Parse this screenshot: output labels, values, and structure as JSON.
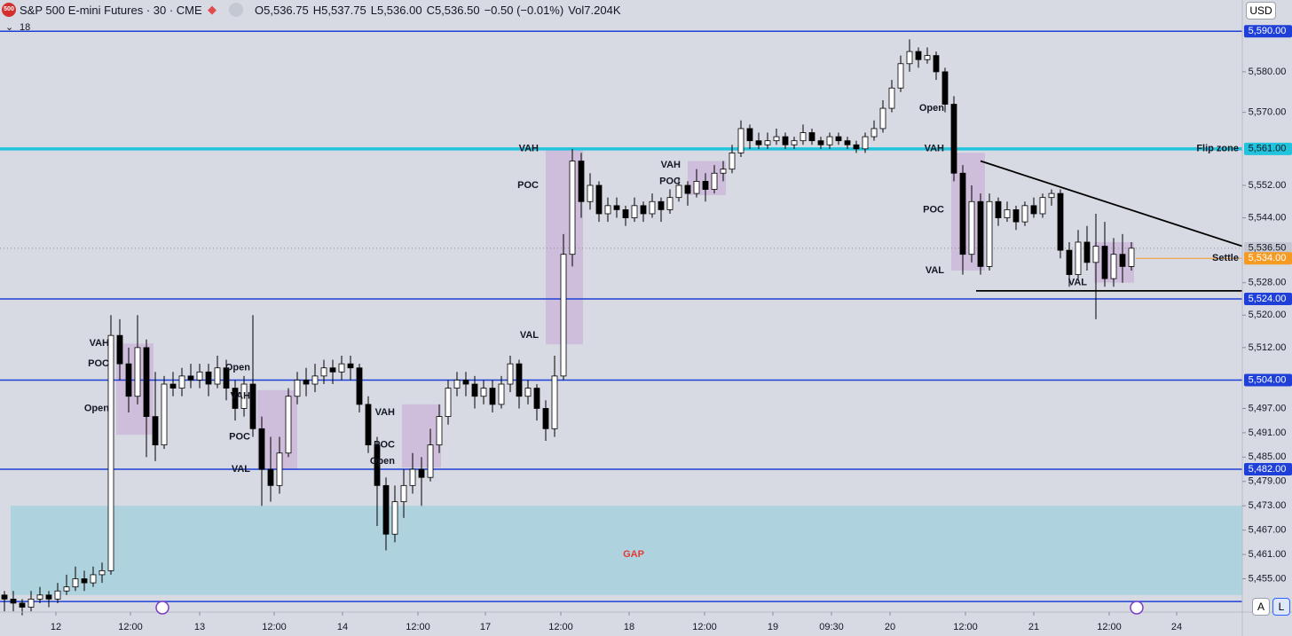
{
  "toolbar": {
    "logo": "500",
    "symbol": "S&P 500 E-mini Futures · 30 · CME",
    "ohlc": [
      {
        "key": "O",
        "text": "5,536.75"
      },
      {
        "key": "H",
        "text": "5,537.75"
      },
      {
        "key": "L",
        "text": "5,536.00"
      },
      {
        "key": "C",
        "text": "5,536.50"
      },
      {
        "key": "",
        "text": "−0.50 (−0.01%)"
      },
      {
        "key": "Vol",
        "text": "7.204K"
      }
    ],
    "indicator_count": "18",
    "currency": "USD",
    "auto_button": "A",
    "log_button": "L"
  },
  "chart_data": {
    "type": "candlestick",
    "xlim": [
      0,
      140
    ],
    "ylim": [
      5446.8,
      5597.7
    ],
    "xticks": [
      {
        "value": 6.3,
        "label": "12"
      },
      {
        "value": 14.7,
        "label": "12:00"
      },
      {
        "value": 22.5,
        "label": "13"
      },
      {
        "value": 30.9,
        "label": "12:00"
      },
      {
        "value": 38.6,
        "label": "14"
      },
      {
        "value": 47.1,
        "label": "12:00"
      },
      {
        "value": 54.7,
        "label": "17"
      },
      {
        "value": 63.2,
        "label": "12:00"
      },
      {
        "value": 70.9,
        "label": "18"
      },
      {
        "value": 79.4,
        "label": "12:00"
      },
      {
        "value": 87.1,
        "label": "19"
      },
      {
        "value": 93.7,
        "label": "09:30"
      },
      {
        "value": 100.3,
        "label": "20"
      },
      {
        "value": 108.8,
        "label": "12:00"
      },
      {
        "value": 116.5,
        "label": "21"
      },
      {
        "value": 125,
        "label": "12:00"
      },
      {
        "value": 132.6,
        "label": "24"
      }
    ],
    "yticks": [
      {
        "value": 5580,
        "label": "5,580.00"
      },
      {
        "value": 5570,
        "label": "5,570.00"
      },
      {
        "value": 5552,
        "label": "5,552.00"
      },
      {
        "value": 5544,
        "label": "5,544.00"
      },
      {
        "value": 5528,
        "label": "5,528.00"
      },
      {
        "value": 5520,
        "label": "5,520.00"
      },
      {
        "value": 5512,
        "label": "5,512.00"
      },
      {
        "value": 5497,
        "label": "5,497.00"
      },
      {
        "value": 5491,
        "label": "5,491.00"
      },
      {
        "value": 5485,
        "label": "5,485.00"
      },
      {
        "value": 5479,
        "label": "5,479.00"
      },
      {
        "value": 5473,
        "label": "5,473.00"
      },
      {
        "value": 5467,
        "label": "5,467.00"
      },
      {
        "value": 5461,
        "label": "5,461.00"
      },
      {
        "value": 5455,
        "label": "5,455.00"
      }
    ],
    "levels": [
      {
        "value": 5590,
        "label": "5,590.00",
        "color": "#1e40d8",
        "width": 1.5
      },
      {
        "value": 5561,
        "label": "5,561.00",
        "color": "#22c3dd",
        "width": 3.5,
        "name": "Flip zone"
      },
      {
        "value": 5536.5,
        "label": "5,536.50",
        "color": "#c5c8d0",
        "width": 1,
        "style": "dotted"
      },
      {
        "value": 5534,
        "label": "5,534.00",
        "color": "#f59a23",
        "width": 1,
        "name": "Settle",
        "from": 128
      },
      {
        "value": 5524,
        "label": "5,524.00",
        "color": "#1e40d8",
        "width": 1.5
      },
      {
        "value": 5504,
        "label": "5,504.00",
        "color": "#1e40d8",
        "width": 1.5
      },
      {
        "value": 5482,
        "label": "5,482.00",
        "color": "#1e40d8",
        "width": 1.5
      },
      {
        "value": 5449.4,
        "color": "#1e40d8",
        "width": 1.5
      }
    ],
    "zones": [
      {
        "x0": 1.2,
        "x1": 140,
        "y0": 5451,
        "y1": 5473,
        "color": "#a8d1dd",
        "opacity": 0.85
      },
      {
        "x0": 13.1,
        "x1": 17.3,
        "y0": 5490.5,
        "y1": 5513,
        "color": "#c39bd3",
        "opacity": 0.45
      },
      {
        "x0": 29,
        "x1": 33.5,
        "y0": 5481.8,
        "y1": 5501.5,
        "color": "#c39bd3",
        "opacity": 0.45
      },
      {
        "x0": 45.3,
        "x1": 49.7,
        "y0": 5482.4,
        "y1": 5498,
        "color": "#c39bd3",
        "opacity": 0.45
      },
      {
        "x0": 61.5,
        "x1": 65.7,
        "y0": 5512.8,
        "y1": 5561,
        "color": "#c39bd3",
        "opacity": 0.45
      },
      {
        "x0": 77.5,
        "x1": 81.8,
        "y0": 5549.6,
        "y1": 5558,
        "color": "#c39bd3",
        "opacity": 0.45
      },
      {
        "x0": 107.2,
        "x1": 111,
        "y0": 5531,
        "y1": 5560,
        "color": "#c39bd3",
        "opacity": 0.45
      },
      {
        "x0": 123.3,
        "x1": 127.8,
        "y0": 5528,
        "y1": 5538,
        "color": "#c39bd3",
        "opacity": 0.45
      }
    ],
    "trendlines": [
      {
        "points": [
          [
            110.5,
            5558
          ],
          [
            140,
            5537
          ]
        ],
        "color": "#000000"
      },
      {
        "points": [
          [
            110,
            5526
          ],
          [
            140,
            5526
          ]
        ],
        "color": "#000000"
      }
    ],
    "annotations": [
      {
        "text": "GAP",
        "x": 71.4,
        "y": 5461,
        "color": "#e53935",
        "size": 18
      },
      {
        "text": "VAH",
        "x": 61.5,
        "y": 5561
      },
      {
        "text": "POC",
        "x": 61.5,
        "y": 5552
      },
      {
        "text": "VAL",
        "x": 61.5,
        "y": 5515
      },
      {
        "text": "VAH",
        "x": 13.1,
        "y": 5513
      },
      {
        "text": "POC",
        "x": 13.1,
        "y": 5508
      },
      {
        "text": "Open",
        "x": 13.1,
        "y": 5497
      },
      {
        "text": "Open",
        "x": 29,
        "y": 5507
      },
      {
        "text": "VAH",
        "x": 29,
        "y": 5500
      },
      {
        "text": "POC",
        "x": 29,
        "y": 5490
      },
      {
        "text": "VAL",
        "x": 29,
        "y": 5482
      },
      {
        "text": "VAH",
        "x": 45.3,
        "y": 5496
      },
      {
        "text": "POC",
        "x": 45.3,
        "y": 5488
      },
      {
        "text": "Open",
        "x": 45.3,
        "y": 5484
      },
      {
        "text": "VAH",
        "x": 77.5,
        "y": 5557
      },
      {
        "text": "POC",
        "x": 77.5,
        "y": 5553
      },
      {
        "text": "Open",
        "x": 107.2,
        "y": 5571
      },
      {
        "text": "VAH",
        "x": 107.2,
        "y": 5561
      },
      {
        "text": "POC",
        "x": 107.2,
        "y": 5546
      },
      {
        "text": "VAL",
        "x": 107.2,
        "y": 5531
      },
      {
        "text": "VAL",
        "x": 123.3,
        "y": 5528
      }
    ],
    "series": [
      {
        "name": "S&P 500 E-mini Futures",
        "up_color": "#ffffff",
        "down_color": "#000000",
        "values": [
          [
            5451,
            5452,
            5447,
            5450
          ],
          [
            5450,
            5452,
            5447,
            5449
          ],
          [
            5449,
            5450,
            5446,
            5448
          ],
          [
            5448,
            5452,
            5447,
            5450
          ],
          [
            5450,
            5453,
            5449,
            5451
          ],
          [
            5451,
            5452,
            5448,
            5450
          ],
          [
            5450,
            5454,
            5449,
            5452
          ],
          [
            5452,
            5456,
            5451,
            5453
          ],
          [
            5453,
            5458,
            5452,
            5455
          ],
          [
            5455,
            5457,
            5452,
            5454
          ],
          [
            5454,
            5458,
            5453,
            5456
          ],
          [
            5456,
            5459,
            5454,
            5457
          ],
          [
            5457,
            5520,
            5456,
            5515
          ],
          [
            5515,
            5519,
            5504,
            5508
          ],
          [
            5508,
            5512,
            5496,
            5500
          ],
          [
            5500,
            5520,
            5498,
            5512
          ],
          [
            5512,
            5514,
            5485,
            5495
          ],
          [
            5495,
            5506,
            5484,
            5488
          ],
          [
            5488,
            5505,
            5487,
            5503
          ],
          [
            5503,
            5506,
            5500,
            5502
          ],
          [
            5502,
            5507,
            5500,
            5505
          ],
          [
            5505,
            5508,
            5502,
            5504
          ],
          [
            5504,
            5508,
            5502,
            5506
          ],
          [
            5506,
            5508,
            5500,
            5503
          ],
          [
            5503,
            5510,
            5502,
            5507
          ],
          [
            5507,
            5509,
            5499,
            5502
          ],
          [
            5502,
            5504,
            5494,
            5497
          ],
          [
            5497,
            5505,
            5495,
            5503
          ],
          [
            5503,
            5520,
            5490,
            5492
          ],
          [
            5492,
            5495,
            5473,
            5482
          ],
          [
            5482,
            5490,
            5474,
            5478
          ],
          [
            5478,
            5490,
            5476,
            5486
          ],
          [
            5486,
            5502,
            5485,
            5500
          ],
          [
            5500,
            5506,
            5498,
            5504
          ],
          [
            5504,
            5507,
            5500,
            5503
          ],
          [
            5503,
            5508,
            5501,
            5505
          ],
          [
            5505,
            5509,
            5503,
            5507
          ],
          [
            5507,
            5509,
            5503,
            5506
          ],
          [
            5506,
            5510,
            5504,
            5508
          ],
          [
            5508,
            5510,
            5504,
            5507
          ],
          [
            5507,
            5508,
            5496,
            5498
          ],
          [
            5498,
            5500,
            5486,
            5488
          ],
          [
            5488,
            5490,
            5468,
            5478
          ],
          [
            5478,
            5480,
            5462,
            5466
          ],
          [
            5466,
            5478,
            5464,
            5474
          ],
          [
            5474,
            5482,
            5470,
            5478
          ],
          [
            5478,
            5486,
            5476,
            5482
          ],
          [
            5482,
            5485,
            5473,
            5480
          ],
          [
            5480,
            5492,
            5479,
            5488
          ],
          [
            5488,
            5498,
            5486,
            5495
          ],
          [
            5495,
            5504,
            5493,
            5502
          ],
          [
            5502,
            5506,
            5500,
            5504
          ],
          [
            5504,
            5506,
            5500,
            5503
          ],
          [
            5503,
            5505,
            5497,
            5500
          ],
          [
            5500,
            5504,
            5498,
            5502
          ],
          [
            5502,
            5504,
            5496,
            5498
          ],
          [
            5498,
            5505,
            5497,
            5503
          ],
          [
            5503,
            5510,
            5501,
            5508
          ],
          [
            5508,
            5509,
            5497,
            5500
          ],
          [
            5500,
            5504,
            5498,
            5502
          ],
          [
            5502,
            5503,
            5494,
            5497
          ],
          [
            5497,
            5499,
            5489,
            5492
          ],
          [
            5492,
            5510,
            5490,
            5505
          ],
          [
            5505,
            5540,
            5504,
            5535
          ],
          [
            5535,
            5561,
            5532,
            5558
          ],
          [
            5558,
            5560,
            5544,
            5548
          ],
          [
            5548,
            5555,
            5546,
            5552
          ],
          [
            5552,
            5553,
            5543,
            5545
          ],
          [
            5545,
            5549,
            5543,
            5547
          ],
          [
            5547,
            5549,
            5544,
            5546
          ],
          [
            5546,
            5547,
            5542,
            5544
          ],
          [
            5544,
            5549,
            5543,
            5547
          ],
          [
            5547,
            5548,
            5543,
            5545
          ],
          [
            5545,
            5550,
            5544,
            5548
          ],
          [
            5548,
            5549,
            5543,
            5546
          ],
          [
            5546,
            5551,
            5545,
            5549
          ],
          [
            5549,
            5554,
            5548,
            5552
          ],
          [
            5552,
            5553,
            5547,
            5550
          ],
          [
            5550,
            5556,
            5549,
            5553
          ],
          [
            5553,
            5555,
            5548,
            5551
          ],
          [
            5551,
            5557,
            5550,
            5555
          ],
          [
            5555,
            5558,
            5553,
            5556
          ],
          [
            5556,
            5562,
            5555,
            5560
          ],
          [
            5560,
            5568,
            5559,
            5566
          ],
          [
            5566,
            5567,
            5561,
            5563
          ],
          [
            5563,
            5565,
            5561,
            5562
          ],
          [
            5562,
            5565,
            5561,
            5563
          ],
          [
            5563,
            5566,
            5562,
            5564
          ],
          [
            5564,
            5565,
            5561,
            5562
          ],
          [
            5562,
            5564,
            5561,
            5563
          ],
          [
            5563,
            5567,
            5562,
            5565
          ],
          [
            5565,
            5566,
            5562,
            5563
          ],
          [
            5563,
            5564,
            5561,
            5562
          ],
          [
            5562,
            5565,
            5561,
            5564
          ],
          [
            5564,
            5565,
            5562,
            5563
          ],
          [
            5563,
            5564,
            5561,
            5562
          ],
          [
            5562,
            5563,
            5560,
            5561
          ],
          [
            5561,
            5565,
            5560,
            5564
          ],
          [
            5564,
            5568,
            5563,
            5566
          ],
          [
            5566,
            5573,
            5565,
            5571
          ],
          [
            5571,
            5578,
            5570,
            5576
          ],
          [
            5576,
            5584,
            5575,
            5582
          ],
          [
            5582,
            5588,
            5580,
            5585
          ],
          [
            5585,
            5586,
            5581,
            5583
          ],
          [
            5583,
            5586,
            5582,
            5584
          ],
          [
            5584,
            5585,
            5578,
            5580
          ],
          [
            5580,
            5581,
            5570,
            5572
          ],
          [
            5572,
            5574,
            5553,
            5555
          ],
          [
            5555,
            5557,
            5530,
            5535
          ],
          [
            5535,
            5552,
            5533,
            5548
          ],
          [
            5548,
            5550,
            5530,
            5532
          ],
          [
            5532,
            5550,
            5531,
            5548
          ],
          [
            5548,
            5549,
            5542,
            5544
          ],
          [
            5544,
            5548,
            5543,
            5546
          ],
          [
            5546,
            5547,
            5541,
            5543
          ],
          [
            5543,
            5548,
            5542,
            5547
          ],
          [
            5547,
            5549,
            5544,
            5545
          ],
          [
            5545,
            5550,
            5544,
            5549
          ],
          [
            5549,
            5551,
            5547,
            5550
          ],
          [
            5550,
            5551,
            5534,
            5536
          ],
          [
            5536,
            5538,
            5527,
            5530
          ],
          [
            5530,
            5541,
            5529,
            5538
          ],
          [
            5538,
            5542,
            5531,
            5533
          ],
          [
            5533,
            5545,
            5519,
            5537
          ],
          [
            5537,
            5543,
            5527,
            5529
          ],
          [
            5529,
            5539,
            5527,
            5535
          ],
          [
            5535,
            5540,
            5528,
            5532
          ],
          [
            5532,
            5538,
            5531,
            5536.5
          ]
        ]
      }
    ]
  }
}
